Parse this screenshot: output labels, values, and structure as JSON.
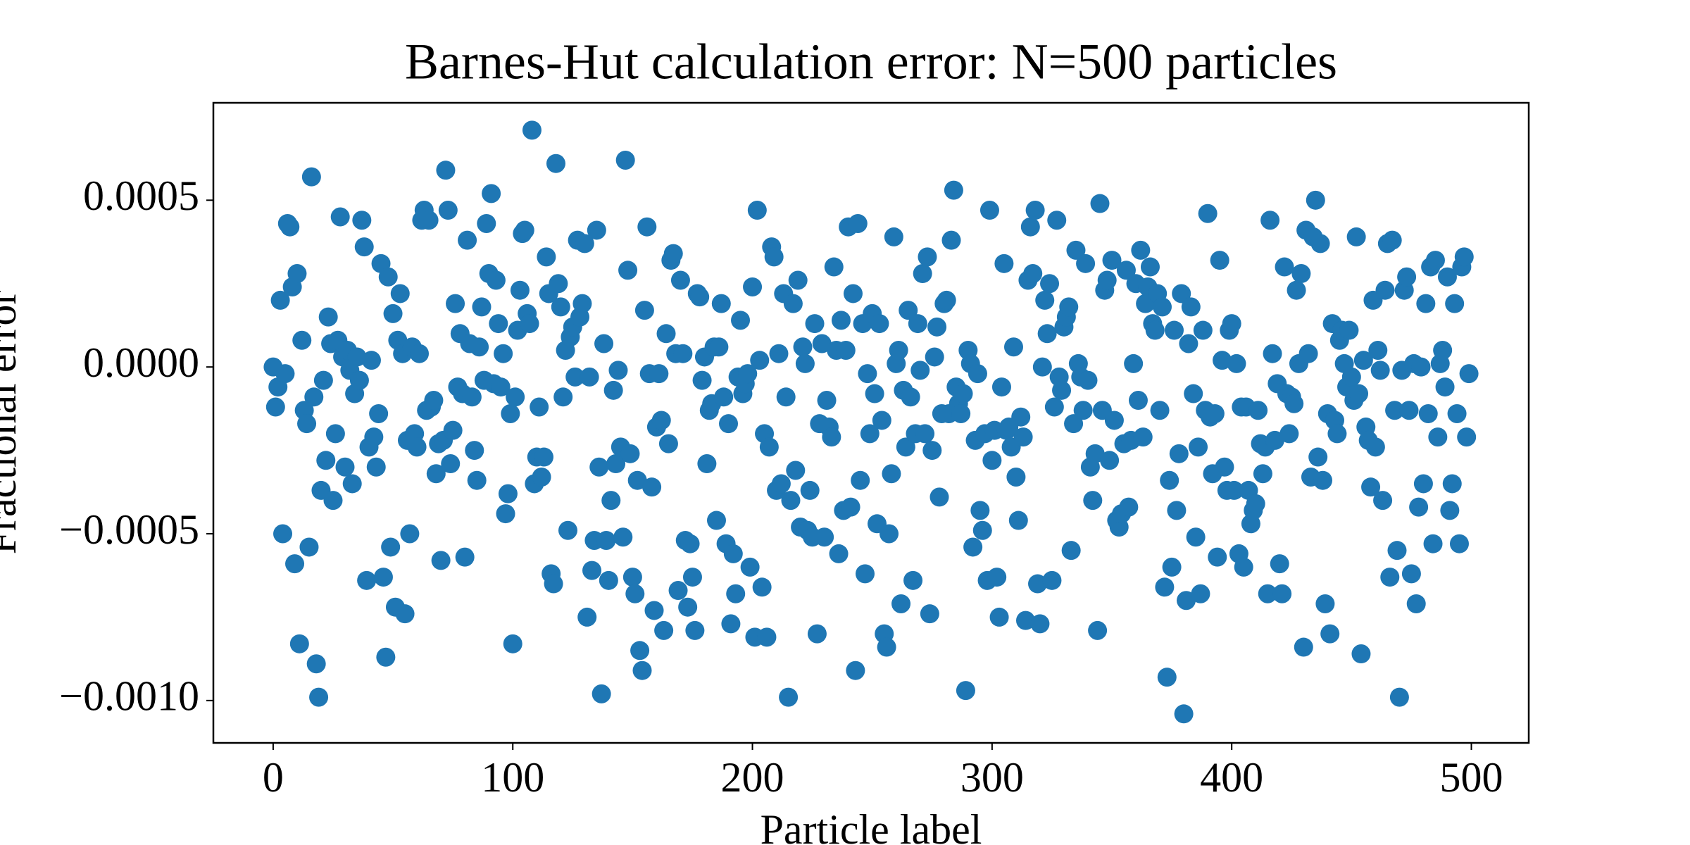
{
  "chart_data": {
    "type": "scatter",
    "title": "Barnes-Hut calculation error: N=500 particles",
    "x_label": "Particle label",
    "y_label": "Fractional error",
    "color": "#1f77b4",
    "xlim": [
      -24.95,
      523.95
    ],
    "xticks": [
      0,
      100,
      200,
      300,
      400,
      500
    ],
    "ylim": [
      -0.001127,
      0.000792
    ],
    "yticks": [
      {
        "value": -0.001,
        "label": "−0.0010"
      },
      {
        "value": -0.0005,
        "label": "−0.0005"
      },
      {
        "value": 0,
        "label": "0.0000"
      },
      {
        "value": 0.0005,
        "label": "0.0005"
      }
    ],
    "x": [
      0,
      1,
      2,
      3,
      4,
      5,
      6,
      7,
      8,
      9,
      10,
      11,
      12,
      13,
      14,
      15,
      16,
      17,
      18,
      19,
      20,
      21,
      22,
      23,
      24,
      25,
      26,
      27,
      28,
      29,
      30,
      31,
      32,
      33,
      34,
      35,
      36,
      37,
      38,
      39,
      40,
      41,
      42,
      43,
      44,
      45,
      46,
      47,
      48,
      49,
      50,
      51,
      52,
      53,
      54,
      55,
      56,
      57,
      58,
      59,
      60,
      61,
      62,
      63,
      64,
      65,
      66,
      67,
      68,
      69,
      70,
      71,
      72,
      73,
      74,
      75,
      76,
      77,
      78,
      79,
      80,
      81,
      82,
      83,
      84,
      85,
      86,
      87,
      88,
      89,
      90,
      91,
      92,
      93,
      94,
      95,
      96,
      97,
      98,
      99,
      100,
      101,
      102,
      103,
      104,
      105,
      106,
      107,
      108,
      109,
      110,
      111,
      112,
      113,
      114,
      115,
      116,
      117,
      118,
      119,
      120,
      121,
      122,
      123,
      124,
      125,
      126,
      127,
      128,
      129,
      130,
      131,
      132,
      133,
      134,
      135,
      136,
      137,
      138,
      139,
      140,
      141,
      142,
      143,
      144,
      145,
      146,
      147,
      148,
      149,
      150,
      151,
      152,
      153,
      154,
      155,
      156,
      157,
      158,
      159,
      160,
      161,
      162,
      163,
      164,
      165,
      166,
      167,
      168,
      169,
      170,
      171,
      172,
      173,
      174,
      175,
      176,
      177,
      178,
      179,
      180,
      181,
      182,
      183,
      184,
      185,
      186,
      187,
      188,
      189,
      190,
      191,
      192,
      193,
      194,
      195,
      196,
      197,
      198,
      199,
      200,
      201,
      202,
      203,
      204,
      205,
      206,
      207,
      208,
      209,
      210,
      211,
      212,
      213,
      214,
      215,
      216,
      217,
      218,
      219,
      220,
      221,
      222,
      223,
      224,
      225,
      226,
      227,
      228,
      229,
      230,
      231,
      232,
      233,
      234,
      235,
      236,
      237,
      238,
      239,
      240,
      241,
      242,
      243,
      244,
      245,
      246,
      247,
      248,
      249,
      250,
      251,
      252,
      253,
      254,
      255,
      256,
      257,
      258,
      259,
      260,
      261,
      262,
      263,
      264,
      265,
      266,
      267,
      268,
      269,
      270,
      271,
      272,
      273,
      274,
      275,
      276,
      277,
      278,
      279,
      280,
      281,
      282,
      283,
      284,
      285,
      286,
      287,
      288,
      289,
      290,
      291,
      292,
      293,
      294,
      295,
      296,
      297,
      298,
      299,
      300,
      301,
      302,
      303,
      304,
      305,
      306,
      307,
      308,
      309,
      310,
      311,
      312,
      313,
      314,
      315,
      316,
      317,
      318,
      319,
      320,
      321,
      322,
      323,
      324,
      325,
      326,
      327,
      328,
      329,
      330,
      331,
      332,
      333,
      334,
      335,
      336,
      337,
      338,
      339,
      340,
      341,
      342,
      343,
      344,
      345,
      346,
      347,
      348,
      349,
      350,
      351,
      352,
      353,
      354,
      355,
      356,
      357,
      358,
      359,
      360,
      361,
      362,
      363,
      364,
      365,
      366,
      367,
      368,
      369,
      370,
      371,
      372,
      373,
      374,
      375,
      376,
      377,
      378,
      379,
      380,
      381,
      382,
      383,
      384,
      385,
      386,
      387,
      388,
      389,
      390,
      391,
      392,
      393,
      394,
      395,
      396,
      397,
      398,
      399,
      400,
      401,
      402,
      403,
      404,
      405,
      406,
      407,
      408,
      409,
      410,
      411,
      412,
      413,
      414,
      415,
      416,
      417,
      418,
      419,
      420,
      421,
      422,
      423,
      424,
      425,
      426,
      427,
      428,
      429,
      430,
      431,
      432,
      433,
      434,
      435,
      436,
      437,
      438,
      439,
      440,
      441,
      442,
      443,
      444,
      445,
      446,
      447,
      448,
      449,
      450,
      451,
      452,
      453,
      454,
      455,
      456,
      457,
      458,
      459,
      460,
      461,
      462,
      463,
      464,
      465,
      466,
      467,
      468,
      469,
      470,
      471,
      472,
      473,
      474,
      475,
      476,
      477,
      478,
      479,
      480,
      481,
      482,
      483,
      484,
      485,
      486,
      487,
      488,
      489,
      490,
      491,
      492,
      493,
      494,
      495,
      496,
      497,
      498,
      499
    ],
    "values": [
      0.0,
      -0.00012,
      -6e-05,
      0.0002,
      -0.0005,
      -2e-05,
      0.00043,
      0.00042,
      0.00024,
      -0.00059,
      0.00028,
      -0.00083,
      8e-05,
      -0.00013,
      -0.00017,
      -0.00054,
      0.00057,
      -9e-05,
      -0.00089,
      -0.00099,
      -0.00037,
      -4e-05,
      -0.00028,
      0.00015,
      7e-05,
      -0.0004,
      -0.0002,
      8e-05,
      0.00045,
      3e-05,
      -0.0003,
      5e-05,
      -1e-05,
      -0.00035,
      -8e-05,
      3e-05,
      -4e-05,
      0.00044,
      0.00036,
      -0.00064,
      -0.00024,
      2e-05,
      -0.00021,
      -0.0003,
      -0.00014,
      0.00031,
      -0.00063,
      -0.00087,
      0.00027,
      -0.00054,
      0.00016,
      -0.00072,
      8e-05,
      0.00022,
      4e-05,
      -0.00074,
      -0.00022,
      -0.0005,
      6e-05,
      -0.0002,
      -0.00024,
      4e-05,
      0.00044,
      0.00047,
      -0.00013,
      0.00044,
      -0.00012,
      -0.0001,
      -0.00032,
      -0.00023,
      -0.00058,
      -0.00022,
      0.00059,
      0.00047,
      -0.00029,
      -0.00019,
      0.00019,
      -6e-05,
      0.0001,
      -8e-05,
      -0.00057,
      0.00038,
      7e-05,
      -9e-05,
      -0.00025,
      -0.00034,
      6e-05,
      0.00018,
      -4e-05,
      0.00043,
      0.00028,
      0.00052,
      -5e-05,
      0.00026,
      0.00013,
      -6e-05,
      4e-05,
      -0.00044,
      -0.00038,
      -0.00014,
      -0.00083,
      -9e-05,
      0.00011,
      0.00023,
      0.0004,
      0.00041,
      0.00016,
      0.00013,
      0.00071,
      -0.00035,
      -0.00027,
      -0.00012,
      -0.00033,
      -0.00027,
      0.00033,
      0.00022,
      -0.00062,
      -0.00065,
      0.00061,
      0.00025,
      0.00018,
      -9e-05,
      5e-05,
      -0.00049,
      9e-05,
      0.00012,
      -3e-05,
      0.00038,
      0.00015,
      0.00019,
      0.00037,
      -0.00075,
      -3e-05,
      -0.00061,
      -0.00052,
      0.00041,
      -0.0003,
      -0.00098,
      7e-05,
      -0.00052,
      -0.00064,
      -0.0004,
      -7e-05,
      -0.00029,
      -1e-05,
      -0.00024,
      -0.00051,
      0.00062,
      0.00029,
      -0.00026,
      -0.00063,
      -0.00068,
      -0.00034,
      -0.00085,
      -0.00091,
      0.00017,
      0.00042,
      -2e-05,
      -0.00036,
      -0.00073,
      -0.00018,
      -2e-05,
      -0.00016,
      -0.00079,
      0.0001,
      -0.00023,
      0.00032,
      0.00034,
      4e-05,
      -0.00067,
      0.00026,
      4e-05,
      -0.00052,
      -0.00072,
      -0.00053,
      -0.00063,
      -0.00079,
      0.00022,
      0.00021,
      -4e-05,
      3e-05,
      -0.00029,
      -0.00013,
      -0.00011,
      6e-05,
      -0.00046,
      6e-05,
      0.00019,
      -9e-05,
      -0.00053,
      -0.00017,
      -0.00077,
      -0.00056,
      -0.00068,
      -3e-05,
      0.00014,
      -8e-05,
      -5e-05,
      -2e-05,
      -0.0006,
      0.00024,
      -0.00081,
      0.00047,
      2e-05,
      -0.00066,
      -0.0002,
      -0.00081,
      -0.00024,
      0.00036,
      0.00033,
      -0.00037,
      4e-05,
      -0.00035,
      0.00022,
      -9e-05,
      -0.00099,
      -0.0004,
      0.00019,
      -0.00031,
      0.00026,
      -0.00048,
      6e-05,
      1e-05,
      -0.00049,
      -0.00037,
      -0.00051,
      0.00013,
      -0.0008,
      -0.00017,
      7e-05,
      -0.00051,
      -0.0001,
      -0.00018,
      -0.00021,
      0.0003,
      5e-05,
      -0.00056,
      0.00014,
      -0.00043,
      5e-05,
      0.00042,
      -0.00042,
      0.00022,
      -0.00091,
      0.00043,
      -0.00034,
      0.00013,
      -0.00062,
      -2e-05,
      -0.0002,
      0.00016,
      -8e-05,
      -0.00047,
      0.00013,
      -0.00016,
      -0.0008,
      -0.00084,
      -0.0005,
      -0.00032,
      0.00039,
      1e-05,
      5e-05,
      -0.00071,
      -7e-05,
      -0.00024,
      0.00017,
      -9e-05,
      -0.00064,
      -0.0002,
      0.00013,
      -1e-05,
      0.00028,
      -0.0002,
      0.00033,
      -0.00074,
      -0.00025,
      3e-05,
      0.00012,
      -0.00039,
      -0.00014,
      0.00019,
      0.0002,
      -0.00014,
      0.00038,
      0.00053,
      -6e-05,
      -0.00011,
      -0.00014,
      -8e-05,
      -0.00097,
      5e-05,
      1e-05,
      -0.00054,
      -0.00022,
      -2e-05,
      -0.00043,
      -0.00049,
      -0.0002,
      -0.00064,
      0.00047,
      -0.00028,
      -0.00019,
      -0.00063,
      -0.00075,
      -6e-05,
      0.00031,
      -0.00019,
      -0.00018,
      -0.00024,
      6e-05,
      -0.00033,
      -0.00046,
      -0.00015,
      -0.00021,
      -0.00076,
      0.00026,
      0.00042,
      0.00028,
      0.00047,
      -0.00065,
      -0.00077,
      0.0,
      0.0002,
      0.0001,
      0.00025,
      -0.00064,
      -0.00012,
      0.00044,
      -3e-05,
      -7e-05,
      0.00012,
      0.00015,
      0.00018,
      -0.00055,
      -0.00017,
      0.00035,
      1e-05,
      -3e-05,
      -0.00013,
      0.00031,
      -4e-05,
      -0.0003,
      -0.0004,
      -0.00026,
      -0.00079,
      0.00049,
      -0.00013,
      0.00023,
      0.00026,
      -0.00028,
      0.00032,
      -0.00016,
      -0.00046,
      -0.00048,
      -0.00044,
      -0.00023,
      0.00029,
      -0.00042,
      -0.00022,
      1e-05,
      0.00025,
      -0.0001,
      0.00035,
      -0.00021,
      0.00019,
      0.00024,
      0.0003,
      0.00013,
      0.00011,
      0.00022,
      -0.00013,
      0.00018,
      -0.00066,
      -0.00093,
      -0.00034,
      -0.0006,
      0.00011,
      -0.00043,
      -0.00026,
      0.00022,
      -0.00104,
      -0.0007,
      7e-05,
      0.00018,
      -8e-05,
      -0.00051,
      -0.00024,
      -0.00068,
      0.00011,
      -0.00013,
      0.00046,
      -0.00015,
      -0.00032,
      -0.00014,
      -0.00057,
      0.00032,
      2e-05,
      -0.0003,
      -0.00037,
      0.00011,
      0.00013,
      -0.00037,
      1e-05,
      -0.00056,
      -0.00012,
      -0.0006,
      -0.00012,
      -0.00037,
      -0.00047,
      -0.00043,
      -0.00041,
      -0.00013,
      -0.00023,
      -0.00032,
      -0.00024,
      -0.00068,
      0.00044,
      4e-05,
      -0.00022,
      -5e-05,
      -0.00059,
      -0.00068,
      0.0003,
      -8e-05,
      -0.0002,
      -9e-05,
      -0.00011,
      0.00023,
      1e-05,
      0.00028,
      -0.00084,
      0.00041,
      4e-05,
      -0.00033,
      0.00039,
      0.0005,
      -0.00027,
      0.00037,
      -0.00034,
      -0.00071,
      -0.00014,
      -0.0008,
      0.00013,
      -0.00016,
      -0.0002,
      8e-05,
      0.00011,
      1e-05,
      -6e-05,
      0.00011,
      -3e-05,
      -0.0001,
      0.00039,
      -8e-05,
      -0.00086,
      2e-05,
      -0.00018,
      -0.00022,
      -0.00036,
      0.0002,
      -0.00024,
      5e-05,
      -1e-05,
      -0.0004,
      0.00023,
      0.00037,
      -0.00063,
      0.00038,
      -0.00013,
      -0.00055,
      -0.00099,
      -1e-05,
      0.00023,
      0.00027,
      -0.00013,
      -0.00062,
      1e-05,
      -0.00071,
      -0.00042,
      0.0,
      -0.00035,
      0.00019,
      -0.00014,
      0.0003,
      -0.00053,
      0.00032,
      -0.00021,
      1e-05,
      5e-05,
      -6e-05,
      0.00027,
      -0.00043,
      -0.00035,
      0.00019,
      -0.00014,
      -0.00053,
      0.0003,
      0.00033,
      -0.00021,
      -2e-05
    ]
  }
}
